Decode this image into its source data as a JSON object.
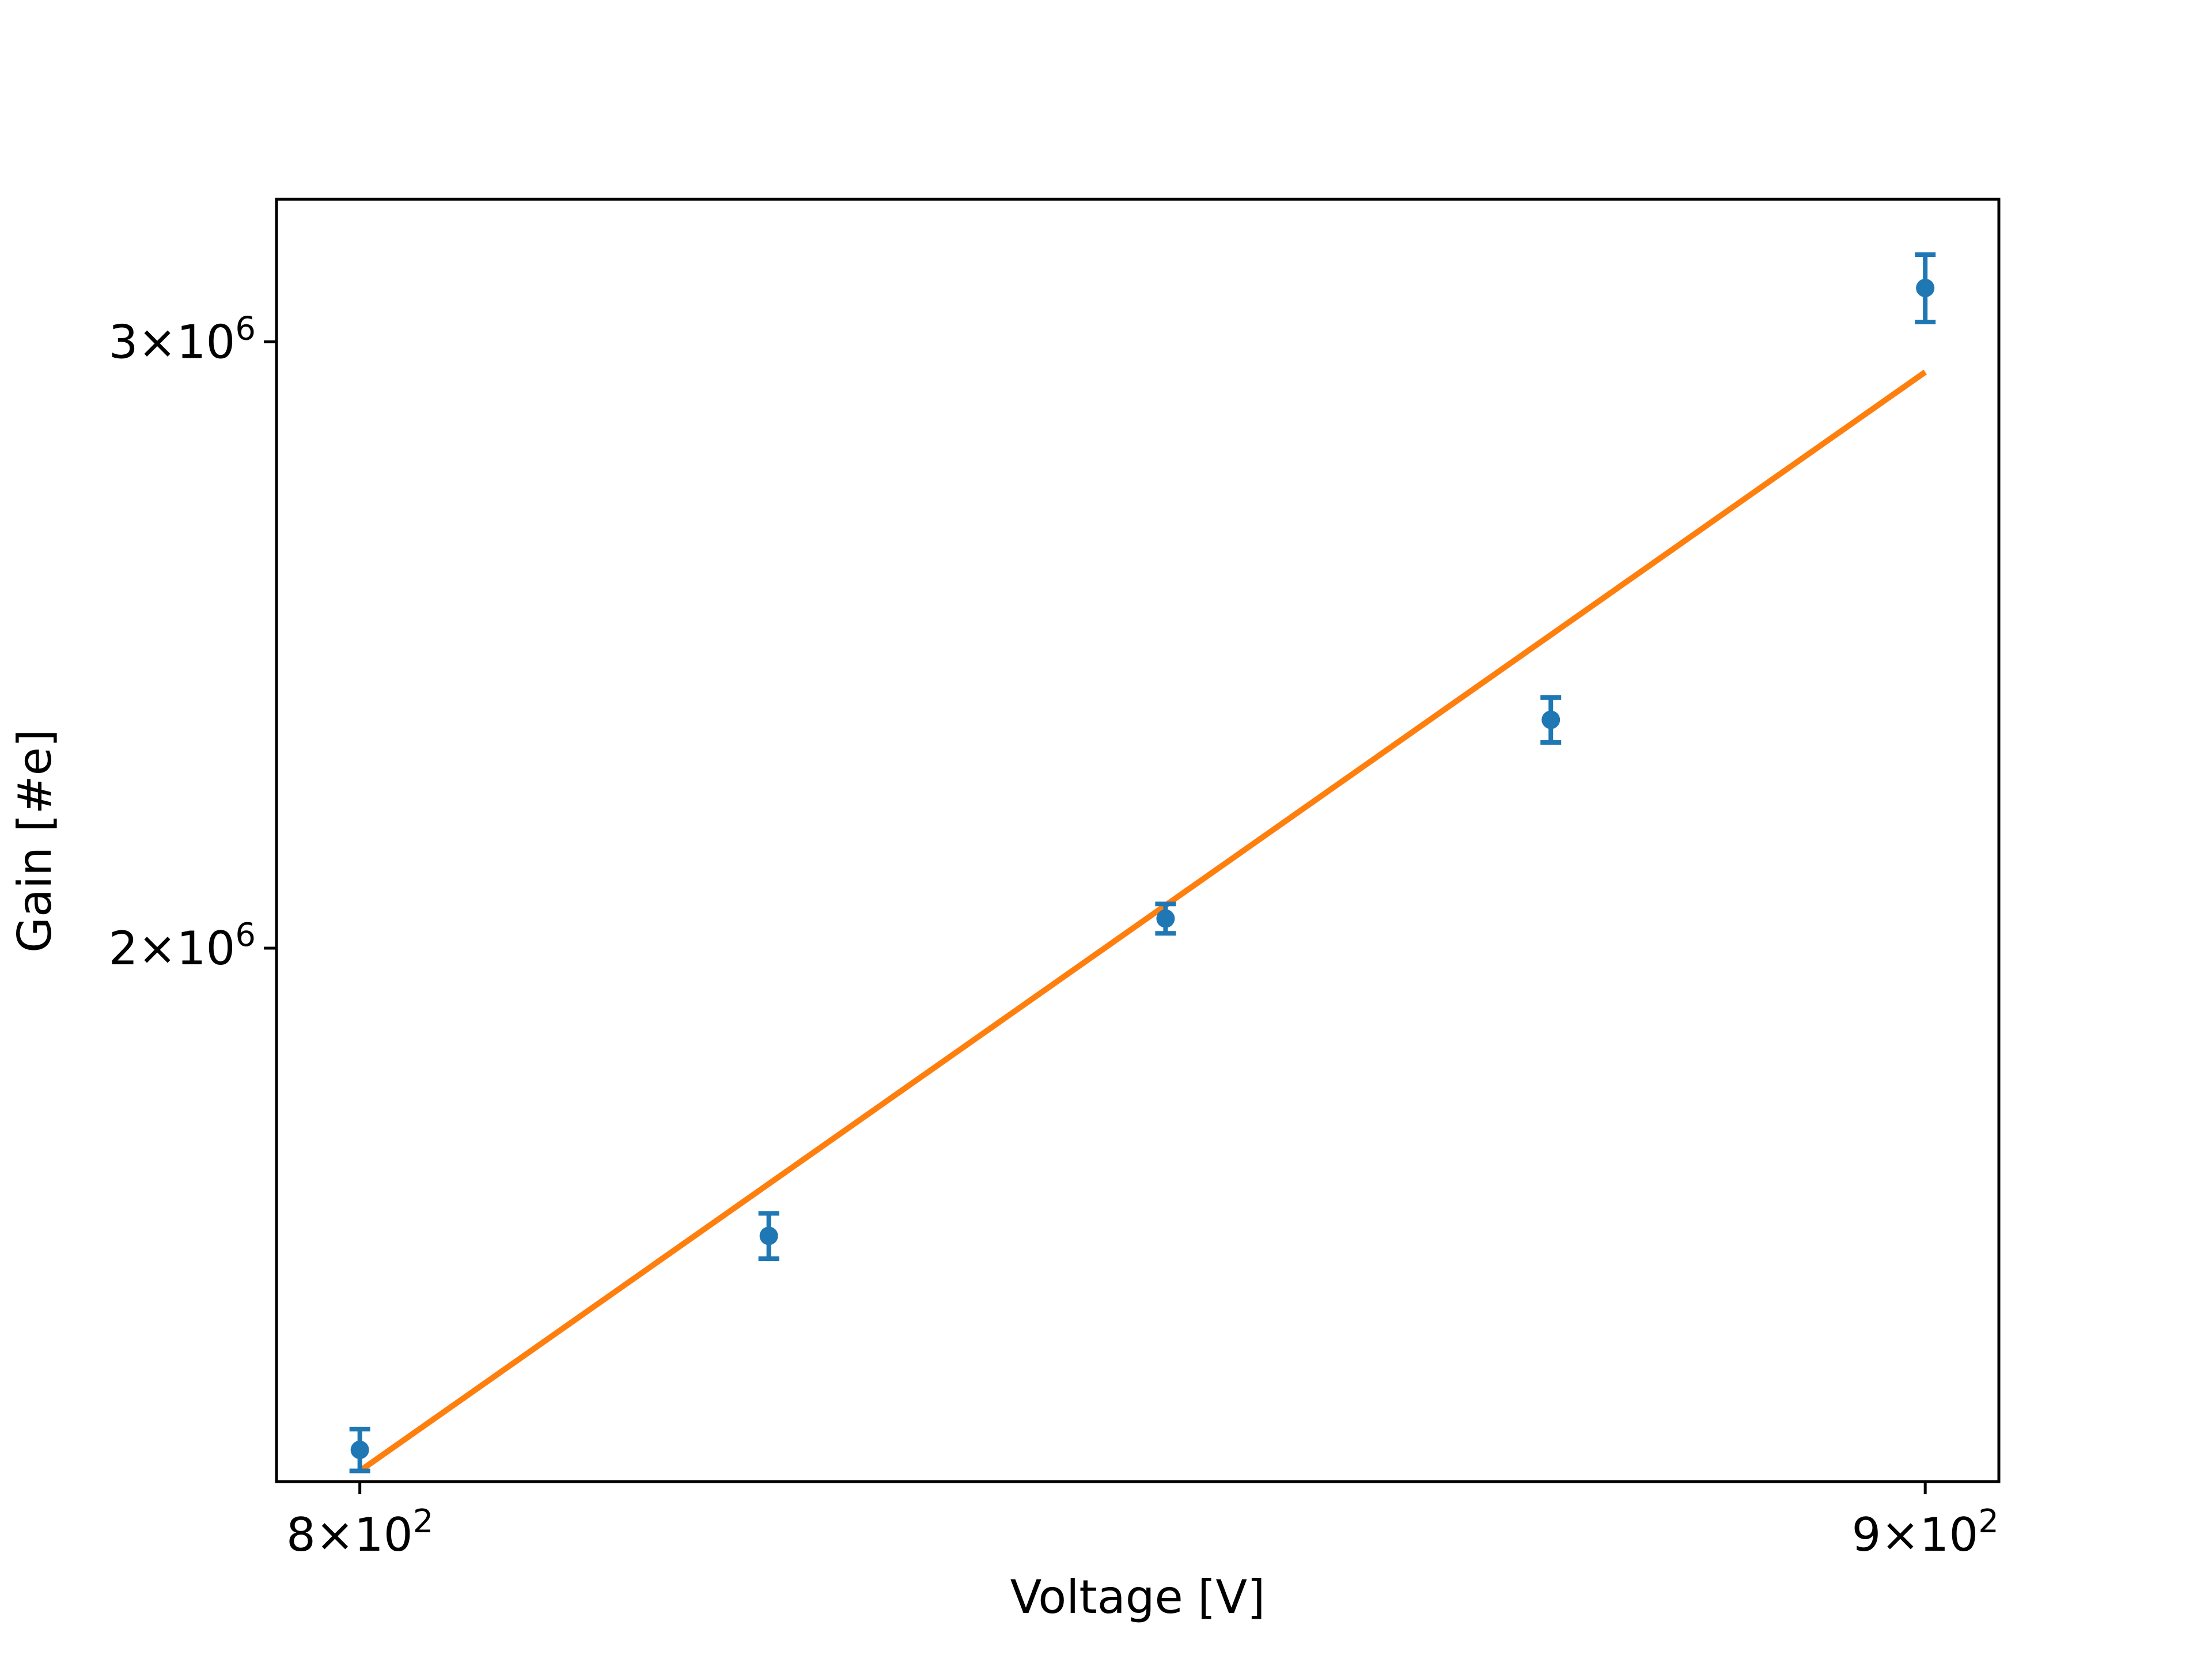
{
  "chart_data": {
    "type": "scatter",
    "xlabel": "Voltage [V]",
    "ylabel": "Gain [#e]",
    "xscale": "log",
    "yscale": "log",
    "xlim": [
      795,
      905
    ],
    "ylim": [
      1400000,
      3300000
    ],
    "grid": false,
    "x_ticks": [
      {
        "value": 800,
        "mantissa": "8",
        "base": "10",
        "exp": "2"
      },
      {
        "value": 900,
        "mantissa": "9",
        "base": "10",
        "exp": "2"
      }
    ],
    "y_ticks": [
      {
        "value": 2000000,
        "mantissa": "2",
        "base": "10",
        "exp": "6"
      },
      {
        "value": 3000000,
        "mantissa": "3",
        "base": "10",
        "exp": "6"
      }
    ],
    "series": [
      {
        "kind": "errorbar",
        "color": "#1f77b4",
        "x": [
          800,
          825,
          850,
          875,
          900
        ],
        "y": [
          1430000,
          1650000,
          2040000,
          2330000,
          3110000
        ],
        "yerr": [
          20000,
          25000,
          20000,
          35000,
          70000
        ]
      },
      {
        "kind": "line",
        "color": "#ff7f0e",
        "x": [
          800,
          900
        ],
        "y": [
          1410000,
          2940000
        ]
      }
    ]
  }
}
